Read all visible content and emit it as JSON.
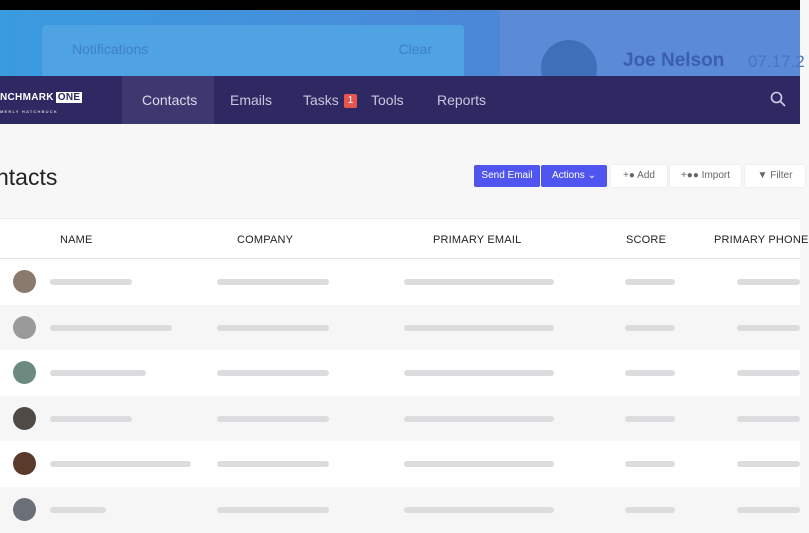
{
  "notifications": {
    "title": "Notifications",
    "clear": "Clear"
  },
  "user": {
    "name": "Joe Nelson",
    "date": "07.17.2"
  },
  "logo": {
    "name": "NCHMARK",
    "badge": "ONE",
    "sub": "MERLY HATCHBUCK"
  },
  "nav": {
    "items": [
      {
        "label": "Contacts",
        "active": true
      },
      {
        "label": "Emails"
      },
      {
        "label": "Tasks",
        "badge": "1"
      },
      {
        "label": "Tools"
      },
      {
        "label": "Reports"
      }
    ]
  },
  "page": {
    "title": "ntacts"
  },
  "toolbar": {
    "send_email": "Send Email",
    "actions": "Actions",
    "add": "Add",
    "import": "Import",
    "filter": "Filter"
  },
  "table": {
    "columns": [
      "NAME",
      "COMPANY",
      "PRIMARY EMAIL",
      "SCORE",
      "PRIMARY PHONE"
    ],
    "rows": [
      {
        "avatar": "#8a7a6e"
      },
      {
        "avatar": "#9a9a9a"
      },
      {
        "avatar": "#6d8a80"
      },
      {
        "avatar": "#4f4a45"
      },
      {
        "avatar": "#5a3a2a"
      },
      {
        "avatar": "#6a7076"
      }
    ]
  },
  "colors": {
    "nav": "#2e2963",
    "primary": "#5055f0",
    "badge": "#e5574c"
  }
}
